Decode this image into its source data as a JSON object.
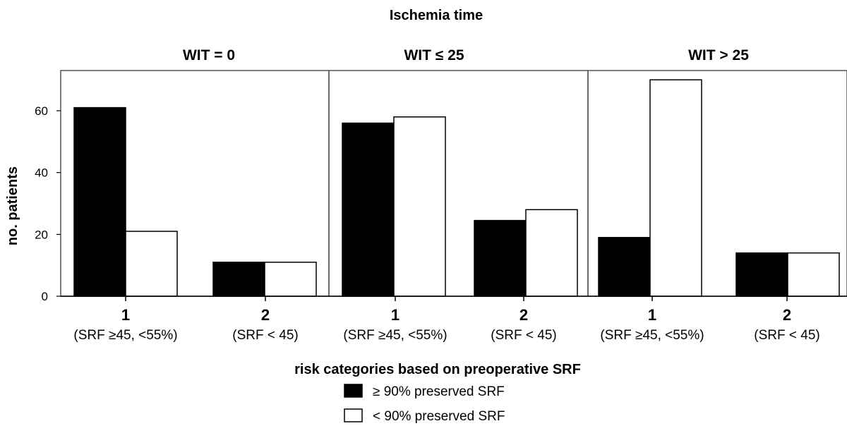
{
  "chart_data": {
    "type": "bar",
    "title": "Ischemia time",
    "ylabel": "no. patients",
    "xlabel": "risk categories based on preoperative SRF",
    "ylim": [
      0,
      73
    ],
    "yticks": [
      0,
      20,
      40,
      60
    ],
    "grid": false,
    "legend_placement": "bottom-center",
    "categories": [
      {
        "number": "1",
        "label": "(SRF ≥45, <55%)"
      },
      {
        "number": "2",
        "label": "(SRF < 45)"
      }
    ],
    "series": [
      {
        "name": "≥ 90% preserved SRF",
        "color": "#000000"
      },
      {
        "name": "< 90% preserved SRF",
        "color": "#ffffff"
      }
    ],
    "panels": [
      {
        "title": "WIT = 0",
        "values": [
          [
            61,
            21
          ],
          [
            11,
            11
          ]
        ]
      },
      {
        "title": "WIT ≤ 25",
        "values": [
          [
            56,
            58
          ],
          [
            24.5,
            28
          ]
        ]
      },
      {
        "title": "WIT > 25",
        "values": [
          [
            19,
            70
          ],
          [
            14,
            14
          ]
        ]
      }
    ]
  }
}
